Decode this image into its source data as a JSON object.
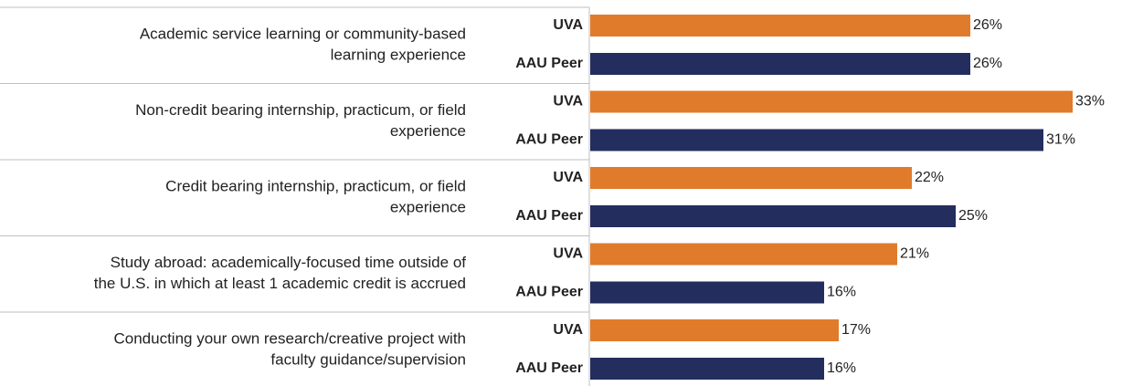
{
  "chart_data": {
    "type": "bar",
    "orientation": "horizontal",
    "categories": [
      [
        "Academic service learning or community-based",
        "learning experience"
      ],
      [
        "Non-credit bearing internship, practicum, or field",
        "experience"
      ],
      [
        "Credit bearing internship, practicum, or field",
        "experience"
      ],
      [
        "Study abroad: academically-focused time outside of",
        "the U.S. in which at least 1 academic credit is accrued"
      ],
      [
        "Conducting your own research/creative project with",
        "faculty guidance/supervision"
      ]
    ],
    "series": [
      {
        "name": "UVA",
        "color": "#e07b2b",
        "values": [
          26,
          33,
          22,
          21,
          17
        ],
        "value_labels": [
          "26%",
          "33%",
          "22%",
          "21%",
          "17%"
        ]
      },
      {
        "name": "AAU Peer",
        "color": "#232d5e",
        "values": [
          26,
          31,
          25,
          16,
          16
        ],
        "value_labels": [
          "26%",
          "31%",
          "25%",
          "16%",
          "16%"
        ]
      }
    ]
  }
}
